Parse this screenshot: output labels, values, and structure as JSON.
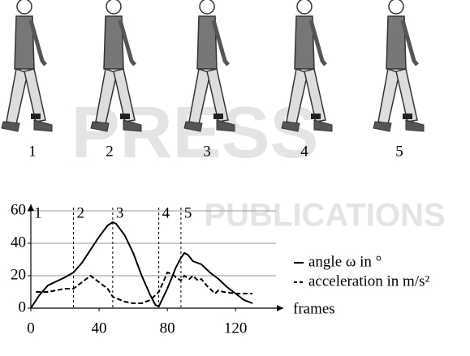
{
  "figure_labels": [
    "1",
    "2",
    "3",
    "4",
    "5"
  ],
  "watermark": [
    "PRESS",
    "PUBLICATIONS"
  ],
  "chart_data": {
    "type": "line",
    "x_label": "frames",
    "xlim": [
      0,
      148
    ],
    "ylim": [
      0,
      64
    ],
    "xticks": [
      0,
      40,
      80,
      120
    ],
    "yticks": [
      0,
      20,
      40,
      60
    ],
    "grid": true,
    "markers": [
      {
        "label": "1",
        "x": 0
      },
      {
        "label": "2",
        "x": 25
      },
      {
        "label": "3",
        "x": 48
      },
      {
        "label": "4",
        "x": 75
      },
      {
        "label": "5",
        "x": 88
      }
    ],
    "series": [
      {
        "name": "angle ω in °",
        "color": "#000",
        "dash": "solid",
        "x": [
          0,
          5,
          10,
          20,
          25,
          30,
          35,
          40,
          45,
          48,
          50,
          55,
          60,
          65,
          70,
          73,
          75,
          80,
          85,
          88,
          90,
          92,
          95,
          100,
          105,
          110,
          115,
          120,
          125,
          130
        ],
        "values": [
          0,
          8,
          14,
          19,
          22,
          28,
          36,
          44,
          51,
          53,
          52,
          45,
          34,
          20,
          8,
          2,
          1,
          12,
          25,
          31,
          34,
          33,
          29,
          27,
          22,
          18,
          13,
          9,
          5,
          3
        ]
      },
      {
        "name": "acceleration in m/s²",
        "color": "#000",
        "dash": "dashed",
        "x": [
          3,
          10,
          15,
          20,
          25,
          30,
          35,
          40,
          45,
          48,
          55,
          60,
          65,
          70,
          75,
          78,
          80,
          83,
          85,
          88,
          90,
          93,
          95,
          98,
          100,
          103,
          105,
          108,
          110,
          113,
          120,
          130
        ],
        "values": [
          10,
          10,
          11,
          12,
          12,
          16,
          20,
          16,
          12,
          7,
          4,
          3,
          3,
          5,
          10,
          17,
          22,
          21,
          19,
          17,
          20,
          18,
          20,
          17,
          18,
          14,
          12,
          9,
          11,
          10,
          9,
          9
        ]
      }
    ]
  }
}
